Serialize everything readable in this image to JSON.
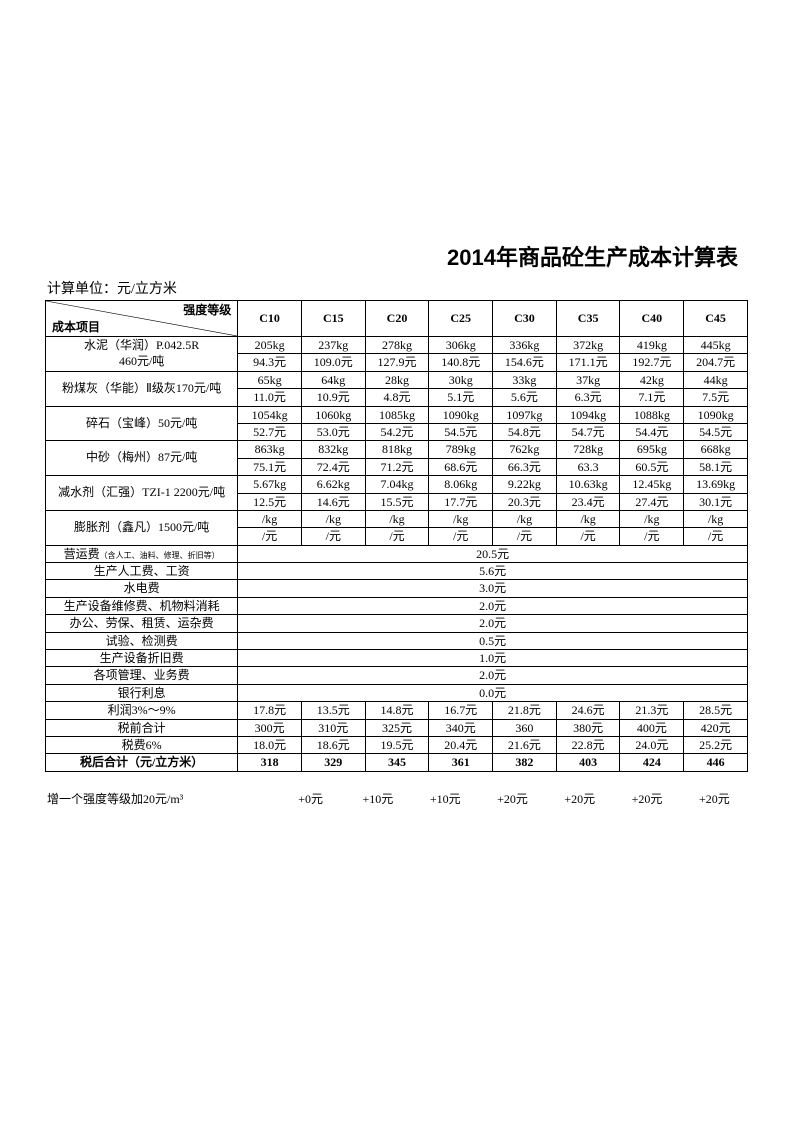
{
  "title": "2014年商品砼生产成本计算表",
  "unit_label": "计算单位：元/立方米",
  "header": {
    "diag_top": "强度等级",
    "diag_bottom": "成本项目"
  },
  "grades": [
    "C10",
    "C15",
    "C20",
    "C25",
    "C30",
    "C35",
    "C40",
    "C45"
  ],
  "material_rows": [
    {
      "label": "水泥（华润）P.042.5R\n460元/吨",
      "kg": [
        "205kg",
        "237kg",
        "278kg",
        "306kg",
        "336kg",
        "372kg",
        "419kg",
        "445kg"
      ],
      "yuan": [
        "94.3元",
        "109.0元",
        "127.9元",
        "140.8元",
        "154.6元",
        "171.1元",
        "192.7元",
        "204.7元"
      ]
    },
    {
      "label": "粉煤灰（华能）Ⅱ级灰170元/吨",
      "kg": [
        "65kg",
        "64kg",
        "28kg",
        "30kg",
        "33kg",
        "37kg",
        "42kg",
        "44kg"
      ],
      "yuan": [
        "11.0元",
        "10.9元",
        "4.8元",
        "5.1元",
        "5.6元",
        "6.3元",
        "7.1元",
        "7.5元"
      ]
    },
    {
      "label": "碎石（宝峰）50元/吨",
      "kg": [
        "1054kg",
        "1060kg",
        "1085kg",
        "1090kg",
        "1097kg",
        "1094kg",
        "1088kg",
        "1090kg"
      ],
      "yuan": [
        "52.7元",
        "53.0元",
        "54.2元",
        "54.5元",
        "54.8元",
        "54.7元",
        "54.4元",
        "54.5元"
      ]
    },
    {
      "label": "中砂（梅州）87元/吨",
      "kg": [
        "863kg",
        "832kg",
        "818kg",
        "789kg",
        "762kg",
        "728kg",
        "695kg",
        "668kg"
      ],
      "yuan": [
        "75.1元",
        "72.4元",
        "71.2元",
        "68.6元",
        "66.3元",
        "63.3",
        "60.5元",
        "58.1元"
      ]
    },
    {
      "label": "减水剂（汇强）TZI-1 2200元/吨",
      "kg": [
        "5.67kg",
        "6.62kg",
        "7.04kg",
        "8.06kg",
        "9.22kg",
        "10.63kg",
        "12.45kg",
        "13.69kg"
      ],
      "yuan": [
        "12.5元",
        "14.6元",
        "15.5元",
        "17.7元",
        "20.3元",
        "23.4元",
        "27.4元",
        "30.1元"
      ]
    },
    {
      "label": "膨胀剂（鑫凡）1500元/吨",
      "kg": [
        "/kg",
        "/kg",
        "/kg",
        "/kg",
        "/kg",
        "/kg",
        "/kg",
        "/kg"
      ],
      "yuan": [
        "/元",
        "/元",
        "/元",
        "/元",
        "/元",
        "/元",
        "/元",
        "/元"
      ]
    }
  ],
  "fee_rows": [
    {
      "label": "营运费",
      "label_suffix": "（含人工、油料、修理、折旧等）",
      "value": "20.5元"
    },
    {
      "label": "生产人工费、工资",
      "value": "5.6元"
    },
    {
      "label": "水电费",
      "value": "3.0元"
    },
    {
      "label": "生产设备维修费、机物料消耗",
      "value": "2.0元"
    },
    {
      "label": "办公、劳保、租赁、运杂费",
      "value": "2.0元"
    },
    {
      "label": "试验、检测费",
      "value": "0.5元"
    },
    {
      "label": "生产设备折旧费",
      "value": "1.0元"
    },
    {
      "label": "各项管理、业务费",
      "value": "2.0元"
    },
    {
      "label": "银行利息",
      "value": "0.0元"
    }
  ],
  "summary_rows": [
    {
      "label": "利润3%～9%",
      "values": [
        "17.8元",
        "13.5元",
        "14.8元",
        "16.7元",
        "21.8元",
        "24.6元",
        "21.3元",
        "28.5元"
      ]
    },
    {
      "label": "税前合计",
      "values": [
        "300元",
        "310元",
        "325元",
        "340元",
        "360",
        "380元",
        "400元",
        "420元"
      ]
    },
    {
      "label": "税费6%",
      "values": [
        "18.0元",
        "18.6元",
        "19.5元",
        "20.4元",
        "21.6元",
        "22.8元",
        "24.0元",
        "25.2元"
      ]
    }
  ],
  "total_row": {
    "label": "税后合计（元/立方米）",
    "values": [
      "318",
      "329",
      "345",
      "361",
      "382",
      "403",
      "424",
      "446"
    ]
  },
  "footer": {
    "label": "增一个强度等级加20元/m³",
    "values": [
      "+0元",
      "+10元",
      "+10元",
      "+20元",
      "+20元",
      "+20元",
      "+20元"
    ]
  },
  "style": {
    "border_color": "#000000",
    "background_color": "#ffffff",
    "text_color": "#000000",
    "title_fontsize": 22,
    "body_fontsize": 12,
    "small_fontsize": 8
  }
}
